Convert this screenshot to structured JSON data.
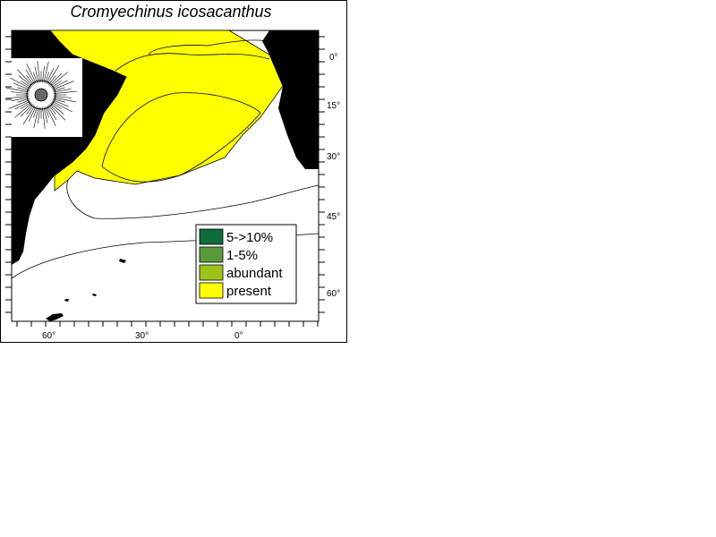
{
  "map": {
    "title": "Cromyechinus icosacanthus",
    "lat_labels": [
      "0°",
      "15°",
      "30°",
      "45°",
      "60°"
    ],
    "lon_labels": [
      "60°",
      "30°",
      "0°"
    ]
  },
  "legend": {
    "items": [
      {
        "label": "5->10%",
        "color": "#0e6b3a"
      },
      {
        "label": "1-5%",
        "color": "#5a9a3a"
      },
      {
        "label": "abundant",
        "color": "#9cc31a"
      },
      {
        "label": "present",
        "color": "#ffff00"
      }
    ]
  },
  "colors": {
    "land": "#000000",
    "ocean": "#ffffff",
    "present": "#ffff00"
  },
  "inset": {
    "icon": "sea-urchin-illustration"
  }
}
